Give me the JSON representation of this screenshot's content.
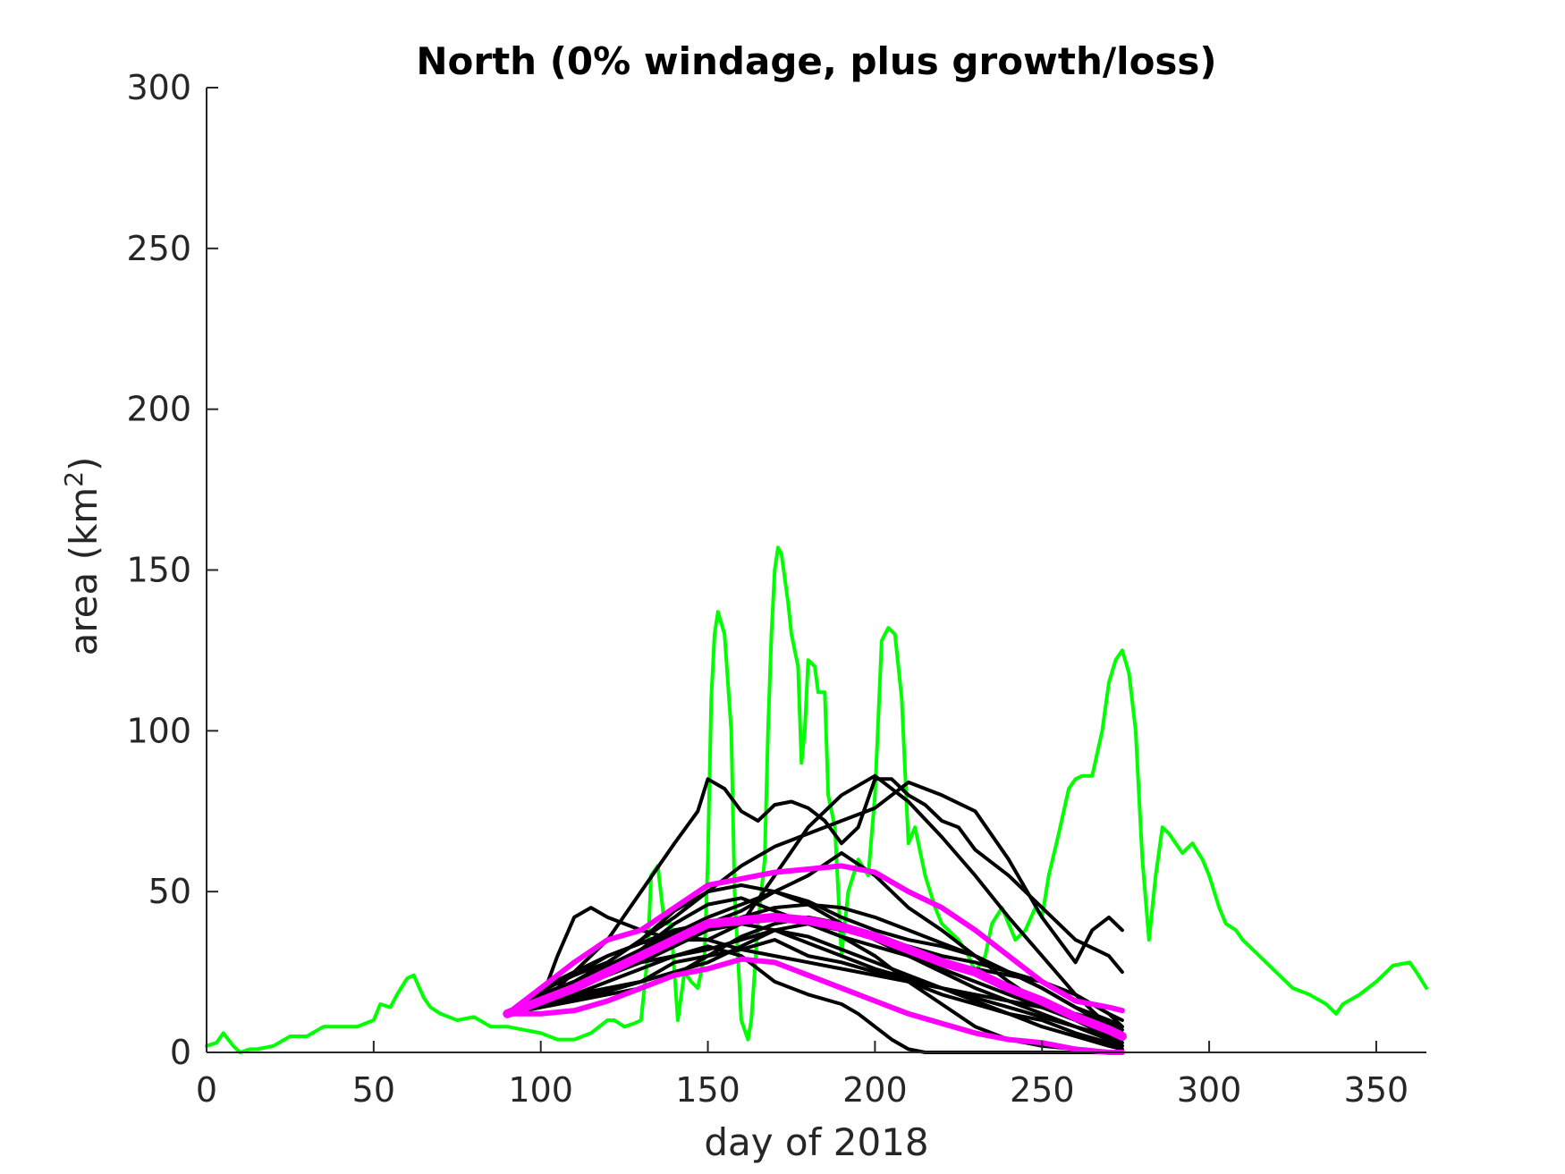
{
  "chart_data": {
    "type": "line",
    "title": "North (0% windage, plus growth/loss)",
    "xlabel": "day of 2018",
    "ylabel_text": "area (km",
    "ylabel_sup": "2",
    "ylabel_close": ")",
    "xlim": [
      0,
      365
    ],
    "ylim": [
      0,
      300
    ],
    "xticks": [
      0,
      50,
      100,
      150,
      200,
      250,
      300,
      350
    ],
    "yticks": [
      0,
      50,
      100,
      150,
      200,
      250,
      300
    ],
    "grid": false,
    "colors": {
      "observed": "#00ff00",
      "ensemble": "#000000",
      "envelope": "#ff00ff",
      "axis": "#262626"
    },
    "observed": {
      "x": [
        0,
        3,
        5,
        8,
        10,
        13,
        15,
        20,
        25,
        30,
        35,
        40,
        45,
        50,
        52,
        55,
        57,
        60,
        62,
        65,
        67,
        70,
        75,
        80,
        85,
        90,
        95,
        100,
        105,
        110,
        115,
        120,
        122,
        125,
        128,
        130,
        132,
        133,
        135,
        137,
        139,
        141,
        143,
        145,
        147,
        149,
        150,
        151,
        152,
        153,
        155,
        157,
        158,
        160,
        162,
        163,
        165,
        167,
        168,
        169,
        170,
        171,
        172,
        174,
        175,
        177,
        178,
        179,
        180,
        182,
        183,
        185,
        186,
        188,
        190,
        192,
        195,
        198,
        200,
        202,
        204,
        206,
        208,
        210,
        212,
        215,
        218,
        220,
        225,
        228,
        230,
        233,
        235,
        238,
        240,
        242,
        245,
        248,
        250,
        252,
        255,
        258,
        260,
        262,
        263,
        265,
        268,
        270,
        272,
        274,
        276,
        278,
        279,
        280,
        282,
        284,
        286,
        288,
        290,
        292,
        295,
        298,
        300,
        303,
        305,
        308,
        310,
        315,
        320,
        325,
        330,
        335,
        338,
        340,
        345,
        350,
        355,
        360,
        362,
        365
      ],
      "y": [
        2,
        3,
        6,
        2,
        0,
        1,
        1,
        2,
        5,
        5,
        8,
        8,
        8,
        10,
        15,
        14,
        18,
        23,
        24,
        17,
        14,
        12,
        10,
        11,
        8,
        8,
        7,
        6,
        4,
        4,
        6,
        10,
        10,
        8,
        9,
        10,
        30,
        55,
        58,
        40,
        40,
        10,
        25,
        22,
        20,
        30,
        60,
        110,
        130,
        137,
        130,
        100,
        50,
        10,
        4,
        10,
        40,
        60,
        100,
        130,
        150,
        157,
        155,
        140,
        130,
        120,
        90,
        100,
        122,
        120,
        112,
        112,
        80,
        70,
        30,
        50,
        60,
        55,
        80,
        128,
        132,
        130,
        110,
        65,
        70,
        55,
        45,
        40,
        35,
        30,
        25,
        30,
        40,
        45,
        40,
        35,
        38,
        45,
        42,
        55,
        68,
        82,
        85,
        86,
        86,
        86,
        100,
        115,
        122,
        125,
        118,
        100,
        80,
        60,
        35,
        55,
        70,
        68,
        65,
        62,
        65,
        60,
        55,
        45,
        40,
        38,
        35,
        30,
        25,
        20,
        18,
        15,
        12,
        15,
        18,
        22,
        27,
        28,
        25,
        20
      ]
    },
    "ensemble": [
      {
        "x": [
          90,
          95,
          100,
          105,
          110,
          115,
          120,
          130,
          140,
          147,
          150,
          155,
          160,
          165,
          170,
          175,
          180,
          185,
          190,
          195,
          200,
          205,
          210,
          215,
          220,
          225,
          230,
          240,
          250,
          260,
          270,
          274
        ],
        "y": [
          12,
          15,
          18,
          20,
          25,
          30,
          35,
          50,
          65,
          75,
          85,
          82,
          75,
          72,
          77,
          78,
          76,
          72,
          65,
          70,
          85,
          85,
          80,
          77,
          72,
          70,
          63,
          55,
          45,
          35,
          30,
          25
        ]
      },
      {
        "x": [
          90,
          95,
          100,
          105,
          110,
          115,
          120,
          130,
          140,
          150,
          160,
          170,
          180,
          190,
          200,
          210,
          220,
          230,
          240,
          250,
          260,
          270,
          274
        ],
        "y": [
          12,
          14,
          16,
          30,
          42,
          45,
          42,
          38,
          35,
          35,
          40,
          55,
          70,
          80,
          86,
          78,
          67,
          55,
          42,
          30,
          18,
          8,
          5
        ]
      },
      {
        "x": [
          90,
          95,
          100,
          110,
          120,
          130,
          140,
          150,
          160,
          170,
          180,
          190,
          200,
          205,
          210,
          220,
          230,
          240,
          250,
          260,
          265,
          270,
          274
        ],
        "y": [
          12,
          16,
          20,
          24,
          28,
          35,
          42,
          50,
          58,
          64,
          68,
          72,
          76,
          80,
          84,
          80,
          75,
          60,
          42,
          28,
          38,
          42,
          38
        ]
      },
      {
        "x": [
          90,
          95,
          100,
          110,
          120,
          130,
          140,
          150,
          160,
          170,
          180,
          190,
          200,
          210,
          220,
          230,
          240,
          250,
          260,
          270,
          274
        ],
        "y": [
          12,
          14,
          16,
          20,
          26,
          30,
          38,
          40,
          44,
          50,
          55,
          62,
          55,
          45,
          38,
          30,
          22,
          15,
          10,
          5,
          3
        ]
      },
      {
        "x": [
          90,
          95,
          100,
          110,
          120,
          130,
          140,
          150,
          160,
          170,
          180,
          190,
          200,
          210,
          220,
          230,
          240,
          250,
          260,
          270,
          274
        ],
        "y": [
          12,
          13,
          14,
          18,
          20,
          22,
          28,
          30,
          32,
          35,
          30,
          28,
          25,
          22,
          18,
          15,
          12,
          10,
          6,
          3,
          2
        ]
      },
      {
        "x": [
          90,
          95,
          100,
          110,
          120,
          130,
          140,
          150,
          160,
          170,
          180,
          190,
          195,
          200,
          205,
          210,
          215,
          220,
          230,
          240,
          250,
          260,
          270,
          274
        ],
        "y": [
          12,
          13,
          15,
          18,
          22,
          26,
          30,
          33,
          30,
          22,
          18,
          15,
          12,
          8,
          4,
          1,
          0,
          0,
          0,
          0,
          0,
          0,
          0,
          0
        ]
      },
      {
        "x": [
          90,
          95,
          100,
          110,
          120,
          130,
          140,
          150,
          160,
          170,
          180,
          190,
          200,
          210,
          220,
          230,
          240,
          250,
          260,
          270,
          274
        ],
        "y": [
          12,
          15,
          18,
          22,
          27,
          32,
          37,
          42,
          46,
          50,
          47,
          42,
          38,
          35,
          33,
          30,
          25,
          20,
          14,
          8,
          6
        ]
      },
      {
        "x": [
          90,
          95,
          100,
          110,
          120,
          130,
          140,
          150,
          160,
          170,
          180,
          190,
          200,
          210,
          220,
          230,
          240,
          250,
          260,
          270,
          274
        ],
        "y": [
          12,
          14,
          17,
          20,
          24,
          28,
          33,
          38,
          42,
          45,
          46,
          45,
          42,
          38,
          34,
          30,
          25,
          20,
          14,
          10,
          8
        ]
      },
      {
        "x": [
          90,
          95,
          100,
          110,
          120,
          130,
          140,
          150,
          160,
          170,
          180,
          190,
          200,
          210,
          220,
          230,
          240,
          250,
          260,
          270,
          274
        ],
        "y": [
          12,
          16,
          19,
          24,
          30,
          34,
          36,
          35,
          32,
          30,
          28,
          26,
          24,
          22,
          20,
          17,
          14,
          11,
          8,
          5,
          4
        ]
      },
      {
        "x": [
          90,
          95,
          100,
          110,
          120,
          130,
          140,
          150,
          160,
          170,
          180,
          190,
          200,
          210,
          220,
          230,
          240,
          250,
          260,
          270,
          274
        ],
        "y": [
          12,
          13,
          15,
          17,
          19,
          22,
          25,
          28,
          33,
          38,
          40,
          36,
          30,
          22,
          15,
          8,
          4,
          2,
          1,
          0,
          0
        ]
      },
      {
        "x": [
          90,
          95,
          100,
          110,
          120,
          130,
          140,
          150,
          160,
          170,
          180,
          190,
          200,
          210,
          220,
          230,
          240,
          250,
          260,
          270,
          274
        ],
        "y": [
          12,
          15,
          18,
          22,
          26,
          32,
          40,
          46,
          48,
          44,
          40,
          36,
          33,
          30,
          28,
          26,
          24,
          22,
          18,
          12,
          10
        ]
      },
      {
        "x": [
          90,
          95,
          100,
          110,
          120,
          130,
          140,
          150,
          160,
          170,
          180,
          190,
          200,
          210,
          220,
          230,
          240,
          250,
          260,
          270,
          274
        ],
        "y": [
          12,
          14,
          16,
          20,
          25,
          30,
          35,
          38,
          40,
          42,
          40,
          38,
          36,
          33,
          30,
          28,
          25,
          22,
          18,
          12,
          8
        ]
      },
      {
        "x": [
          90,
          95,
          100,
          110,
          120,
          130,
          140,
          150,
          160,
          170,
          180,
          190,
          200,
          210,
          220,
          230,
          240,
          250,
          260,
          270,
          274
        ],
        "y": [
          12,
          15,
          17,
          21,
          25,
          28,
          30,
          32,
          35,
          38,
          36,
          32,
          28,
          24,
          20,
          16,
          12,
          8,
          5,
          2,
          1
        ]
      },
      {
        "x": [
          90,
          95,
          100,
          110,
          120,
          130,
          140,
          150,
          160,
          170,
          180,
          190,
          200,
          210,
          220,
          230,
          240,
          250,
          260,
          270,
          274
        ],
        "y": [
          12,
          14,
          18,
          22,
          28,
          35,
          44,
          50,
          52,
          50,
          46,
          40,
          35,
          30,
          26,
          22,
          18,
          14,
          10,
          6,
          4
        ]
      },
      {
        "x": [
          90,
          95,
          100,
          110,
          120,
          130,
          140,
          150,
          160,
          170,
          180,
          190,
          200,
          210,
          220,
          230,
          240,
          250,
          260,
          270,
          274
        ],
        "y": [
          12,
          13,
          14,
          16,
          18,
          20,
          24,
          30,
          36,
          40,
          42,
          40,
          36,
          30,
          25,
          20,
          16,
          12,
          8,
          4,
          2
        ]
      },
      {
        "x": [
          90,
          95,
          100,
          110,
          120,
          130,
          140,
          150,
          160,
          170,
          180,
          190,
          200,
          210,
          220,
          230,
          240,
          250,
          260,
          270,
          274
        ],
        "y": [
          12,
          16,
          20,
          25,
          30,
          34,
          38,
          40,
          40,
          38,
          34,
          30,
          26,
          23,
          20,
          18,
          16,
          14,
          12,
          9,
          7
        ]
      }
    ],
    "envelope": [
      {
        "x": [
          90,
          100,
          110,
          120,
          130,
          140,
          150,
          160,
          170,
          180,
          190,
          200,
          210,
          220,
          230,
          240,
          250,
          260,
          270,
          274
        ],
        "y": [
          12,
          16,
          20,
          25,
          30,
          35,
          40,
          41,
          42,
          41,
          39,
          36,
          32,
          28,
          25,
          20,
          16,
          11,
          7,
          5
        ],
        "width": 10
      },
      {
        "x": [
          90,
          100,
          110,
          120,
          130,
          140,
          150,
          160,
          170,
          180,
          190,
          200,
          210,
          220,
          230,
          240,
          250,
          260,
          270,
          274
        ],
        "y": [
          12,
          20,
          28,
          35,
          38,
          45,
          52,
          54,
          56,
          57,
          58,
          56,
          50,
          45,
          38,
          30,
          22,
          16,
          14,
          13
        ],
        "width": 6
      },
      {
        "x": [
          90,
          100,
          110,
          120,
          130,
          140,
          150,
          160,
          170,
          180,
          190,
          200,
          210,
          220,
          230,
          240,
          250,
          260,
          270,
          274
        ],
        "y": [
          12,
          12,
          13,
          16,
          20,
          24,
          26,
          29,
          28,
          24,
          20,
          16,
          12,
          9,
          6,
          4,
          3,
          1,
          0,
          0
        ],
        "width": 6
      }
    ]
  }
}
